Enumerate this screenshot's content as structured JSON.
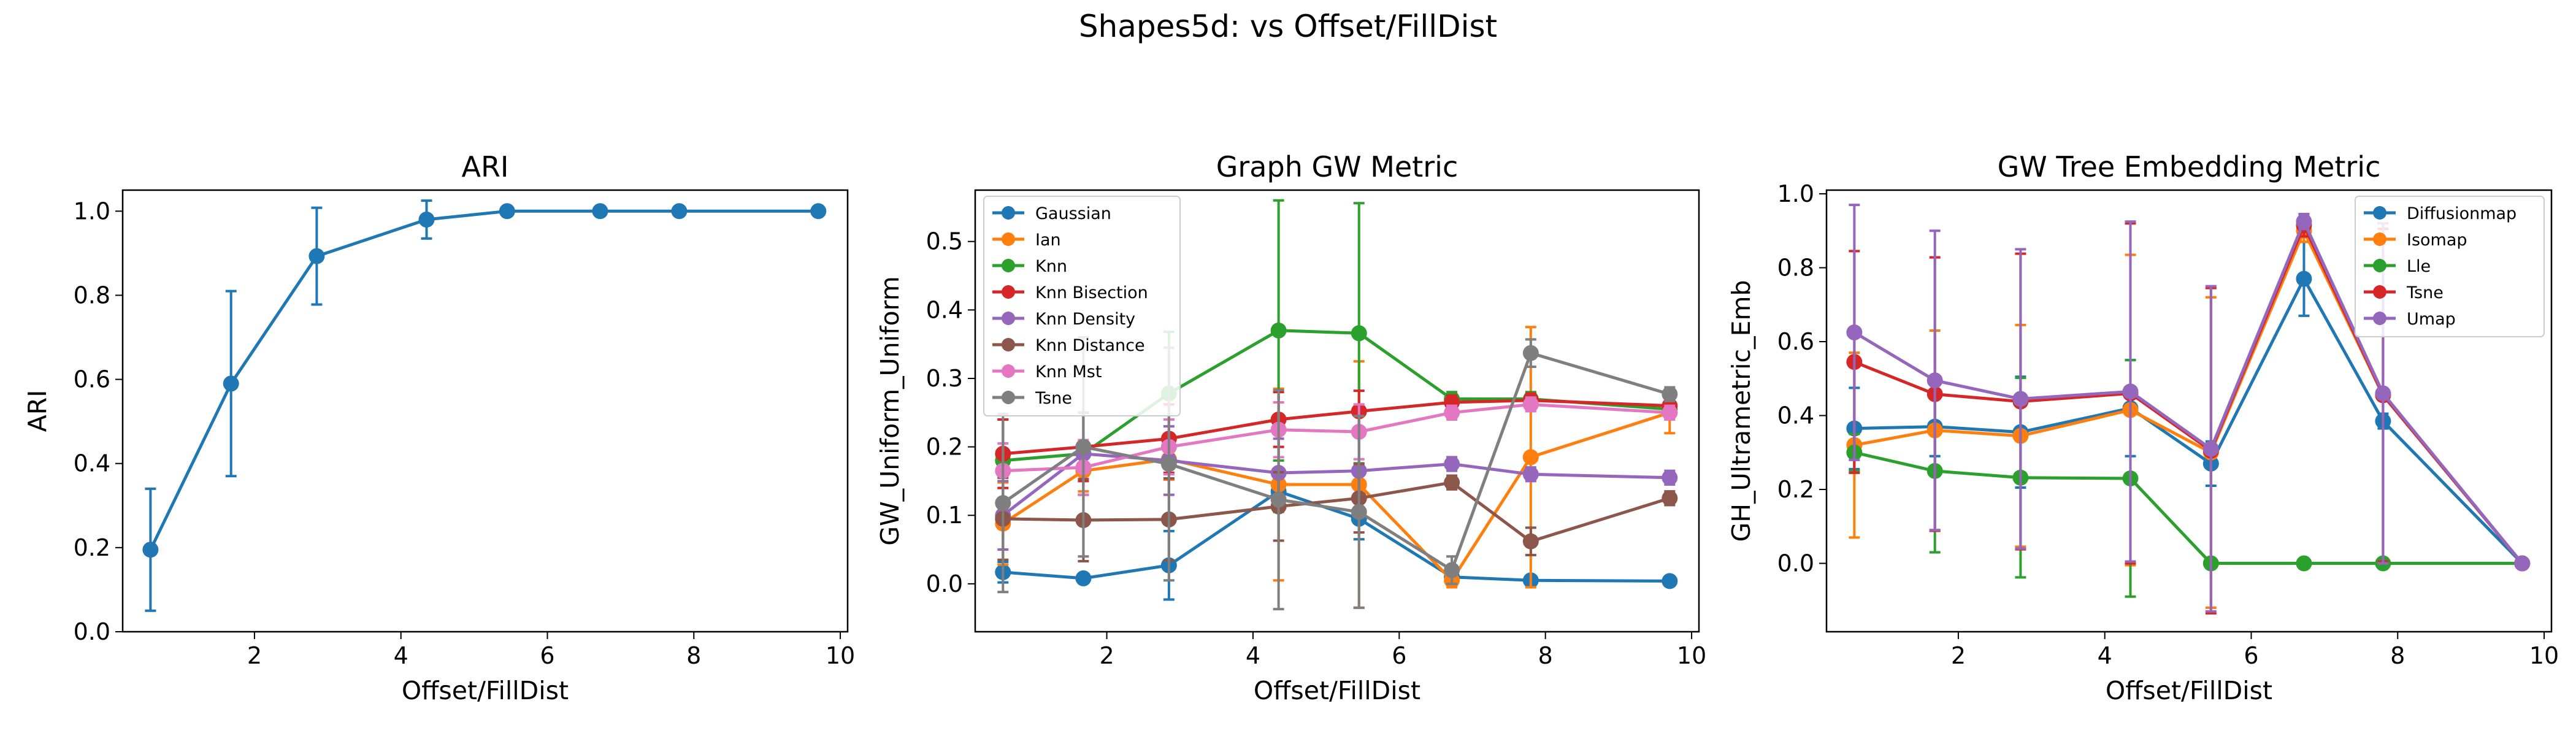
{
  "suptitle": "Shapes5d: vs Offset/FillDist",
  "colors": {
    "c0": "#1f77b4",
    "c1": "#ff7f0e",
    "c2": "#2ca02c",
    "c3": "#d62728",
    "c4": "#9467bd",
    "c5": "#8c564b",
    "c6": "#e377c2",
    "c7": "#7f7f7f"
  },
  "chart_data": [
    {
      "type": "line",
      "title": "ARI",
      "xlabel": "Offset/FillDist",
      "ylabel": "ARI",
      "xlim": [
        0.2,
        10.1
      ],
      "ylim": [
        0.0,
        1.05
      ],
      "xticks": [
        2,
        4,
        6,
        8,
        10
      ],
      "yticks": [
        0.0,
        0.2,
        0.4,
        0.6,
        0.8,
        1.0
      ],
      "ytick_labels": [
        "0.0",
        "0.2",
        "0.4",
        "0.6",
        "0.8",
        "1.0"
      ],
      "x": [
        0.58,
        1.68,
        2.85,
        4.35,
        5.45,
        6.72,
        7.8,
        9.7
      ],
      "series": [
        {
          "color": "#1f77b4",
          "values": [
            0.195,
            0.59,
            0.893,
            0.98,
            1.0,
            1.0,
            1.0,
            1.0
          ],
          "err": [
            0.145,
            0.22,
            0.115,
            0.045,
            0,
            0,
            0,
            0
          ]
        }
      ]
    },
    {
      "type": "line",
      "title": "Graph GW Metric",
      "xlabel": "Offset/FillDist",
      "ylabel": "GW_Uniform_Uniform",
      "xlim": [
        0.2,
        10.1
      ],
      "ylim": [
        -0.07,
        0.575
      ],
      "xticks": [
        2,
        4,
        6,
        8,
        10
      ],
      "yticks": [
        0.0,
        0.1,
        0.2,
        0.3,
        0.4,
        0.5
      ],
      "ytick_labels": [
        "0.0",
        "0.1",
        "0.2",
        "0.3",
        "0.4",
        "0.5"
      ],
      "legend_position": "upper-left",
      "x": [
        0.58,
        1.68,
        2.85,
        4.35,
        5.45,
        6.72,
        7.8,
        9.7
      ],
      "series": [
        {
          "name": "Gaussian",
          "color": "#1f77b4",
          "values": [
            0.017,
            0.008,
            0.027,
            0.135,
            0.095,
            0.01,
            0.005,
            0.004
          ],
          "err": [
            0.015,
            0.005,
            0.05,
            0.03,
            0.03,
            0.008,
            0.003,
            0.002
          ]
        },
        {
          "name": "Ian",
          "color": "#ff7f0e",
          "values": [
            0.088,
            0.165,
            0.182,
            0.145,
            0.145,
            0.005,
            0.185,
            0.25
          ],
          "err": [
            0.06,
            0.03,
            0.03,
            0.14,
            0.18,
            0.01,
            0.19,
            0.03
          ]
        },
        {
          "name": "Knn",
          "color": "#2ca02c",
          "values": [
            0.18,
            0.19,
            0.278,
            0.37,
            0.366,
            0.27,
            0.27,
            0.255
          ],
          "err": [
            0.06,
            0.06,
            0.09,
            0.19,
            0.19,
            0.01,
            0.01,
            0.01
          ]
        },
        {
          "name": "Knn Bisection",
          "color": "#d62728",
          "values": [
            0.19,
            0.2,
            0.212,
            0.24,
            0.252,
            0.265,
            0.268,
            0.26
          ],
          "err": [
            0.05,
            0.05,
            0.05,
            0.04,
            0.03,
            0.01,
            0.01,
            0.01
          ]
        },
        {
          "name": "Knn Density",
          "color": "#9467bd",
          "values": [
            0.1,
            0.19,
            0.18,
            0.162,
            0.165,
            0.175,
            0.16,
            0.155
          ],
          "err": [
            0.05,
            0.06,
            0.05,
            0.05,
            0.06,
            0.01,
            0.01,
            0.01
          ]
        },
        {
          "name": "Knn Distance",
          "color": "#8c564b",
          "values": [
            0.095,
            0.093,
            0.094,
            0.113,
            0.125,
            0.148,
            0.062,
            0.125
          ],
          "err": [
            0.06,
            0.06,
            0.06,
            0.05,
            0.05,
            0.01,
            0.02,
            0.01
          ]
        },
        {
          "name": "Knn Mst",
          "color": "#e377c2",
          "values": [
            0.165,
            0.17,
            0.2,
            0.225,
            0.222,
            0.25,
            0.262,
            0.25
          ],
          "err": [
            0.04,
            0.04,
            0.04,
            0.04,
            0.04,
            0.01,
            0.01,
            0.01
          ]
        },
        {
          "name": "Tsne",
          "color": "#7f7f7f",
          "values": [
            0.118,
            0.2,
            0.175,
            0.123,
            0.105,
            0.02,
            0.337,
            0.277
          ],
          "err": [
            0.13,
            0.16,
            0.17,
            0.16,
            0.14,
            0.02,
            0.02,
            0.01
          ]
        }
      ]
    },
    {
      "type": "line",
      "title": "GW Tree Embedding Metric",
      "xlabel": "Offset/FillDist",
      "ylabel": "GH_Ultrametric_Emb",
      "xlim": [
        0.2,
        10.1
      ],
      "ylim": [
        -0.185,
        1.01
      ],
      "xticks": [
        2,
        4,
        6,
        8,
        10
      ],
      "yticks": [
        0.0,
        0.2,
        0.4,
        0.6,
        0.8,
        1.0
      ],
      "ytick_labels": [
        "0.0",
        "0.2",
        "0.4",
        "0.6",
        "0.8",
        "1.0"
      ],
      "legend_position": "upper-right",
      "x": [
        0.58,
        1.68,
        2.85,
        4.35,
        5.45,
        6.72,
        7.8,
        9.7
      ],
      "series": [
        {
          "name": "Diffusionmap",
          "color": "#1f77b4",
          "values": [
            0.365,
            0.37,
            0.355,
            0.42,
            0.27,
            0.77,
            0.385,
            0.0
          ],
          "err": [
            0.11,
            0.08,
            0.15,
            0.13,
            0.06,
            0.1,
            0.02,
            0.0
          ]
        },
        {
          "name": "Isomap",
          "color": "#ff7f0e",
          "values": [
            0.32,
            0.36,
            0.345,
            0.415,
            0.3,
            0.9,
            0.455,
            0.0
          ],
          "err": [
            0.25,
            0.27,
            0.3,
            0.42,
            0.42,
            0.03,
            0.45,
            0.0
          ]
        },
        {
          "name": "Lle",
          "color": "#2ca02c",
          "values": [
            0.3,
            0.25,
            0.232,
            0.23,
            0.0,
            0.0,
            0.0,
            0.0
          ],
          "err": [
            0.05,
            0.22,
            0.27,
            0.32,
            0.0,
            0.0,
            0.0,
            0.0
          ]
        },
        {
          "name": "Tsne",
          "color": "#d62728",
          "values": [
            0.545,
            0.458,
            0.438,
            0.46,
            0.305,
            0.915,
            0.455,
            0.0
          ],
          "err": [
            0.3,
            0.37,
            0.4,
            0.46,
            0.44,
            0.03,
            0.45,
            0.0
          ]
        },
        {
          "name": "Umap",
          "color": "#9467bd",
          "values": [
            0.625,
            0.495,
            0.445,
            0.465,
            0.31,
            0.925,
            0.46,
            0.0
          ],
          "err": [
            0.345,
            0.405,
            0.405,
            0.46,
            0.44,
            0.02,
            0.46,
            0.0
          ]
        }
      ]
    }
  ]
}
